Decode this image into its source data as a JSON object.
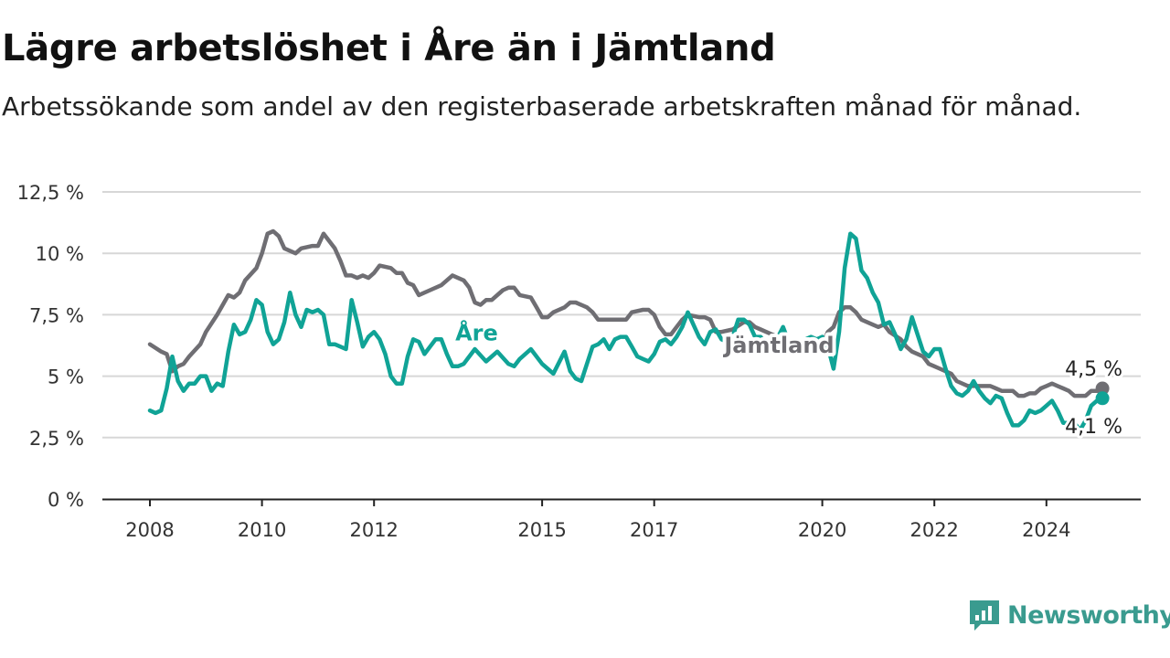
{
  "title": "Lägre arbetslöshet i Åre än i Jämtland",
  "subtitle": "Arbetssökande som andel av den registerbaserade arbetskraften månad för månad.",
  "brand": {
    "name": "Newsworthy",
    "color": "#3a9b8f"
  },
  "chart_data": {
    "type": "line",
    "ylim": [
      0,
      12.5
    ],
    "xlim": [
      2008,
      2025.1
    ],
    "yticks": [
      {
        "value": 0,
        "label": "0 %"
      },
      {
        "value": 2.5,
        "label": "2,5 %"
      },
      {
        "value": 5,
        "label": "5 %"
      },
      {
        "value": 7.5,
        "label": "7,5 %"
      },
      {
        "value": 10,
        "label": "10 %"
      },
      {
        "value": 12.5,
        "label": "12,5 %"
      }
    ],
    "xticks": [
      {
        "value": 2008,
        "label": "2008"
      },
      {
        "value": 2010,
        "label": "2010"
      },
      {
        "value": 2012,
        "label": "2012"
      },
      {
        "value": 2015,
        "label": "2015"
      },
      {
        "value": 2017,
        "label": "2017"
      },
      {
        "value": 2020,
        "label": "2020"
      },
      {
        "value": 2022,
        "label": "2022"
      },
      {
        "value": 2024,
        "label": "2024"
      }
    ],
    "grid": true,
    "series": [
      {
        "name": "Jämtland",
        "color": "#6f6e73",
        "end_label": "4,5 %",
        "points": [
          [
            2008.0,
            6.3
          ],
          [
            2008.2,
            6.0
          ],
          [
            2008.3,
            5.9
          ],
          [
            2008.4,
            5.2
          ],
          [
            2008.5,
            5.4
          ],
          [
            2008.6,
            5.5
          ],
          [
            2008.7,
            5.8
          ],
          [
            2008.9,
            6.3
          ],
          [
            2009.0,
            6.8
          ],
          [
            2009.2,
            7.5
          ],
          [
            2009.3,
            7.9
          ],
          [
            2009.4,
            8.3
          ],
          [
            2009.5,
            8.2
          ],
          [
            2009.6,
            8.4
          ],
          [
            2009.7,
            8.9
          ],
          [
            2009.9,
            9.4
          ],
          [
            2010.0,
            10.0
          ],
          [
            2010.1,
            10.8
          ],
          [
            2010.2,
            10.9
          ],
          [
            2010.3,
            10.7
          ],
          [
            2010.4,
            10.2
          ],
          [
            2010.6,
            10.0
          ],
          [
            2010.7,
            10.2
          ],
          [
            2010.9,
            10.3
          ],
          [
            2011.0,
            10.3
          ],
          [
            2011.1,
            10.8
          ],
          [
            2011.3,
            10.2
          ],
          [
            2011.4,
            9.7
          ],
          [
            2011.5,
            9.1
          ],
          [
            2011.6,
            9.1
          ],
          [
            2011.7,
            9.0
          ],
          [
            2011.8,
            9.1
          ],
          [
            2011.9,
            9.0
          ],
          [
            2012.0,
            9.2
          ],
          [
            2012.1,
            9.5
          ],
          [
            2012.3,
            9.4
          ],
          [
            2012.4,
            9.2
          ],
          [
            2012.5,
            9.2
          ],
          [
            2012.6,
            8.8
          ],
          [
            2012.7,
            8.7
          ],
          [
            2012.8,
            8.3
          ],
          [
            2013.0,
            8.5
          ],
          [
            2013.2,
            8.7
          ],
          [
            2013.4,
            9.1
          ],
          [
            2013.6,
            8.9
          ],
          [
            2013.7,
            8.6
          ],
          [
            2013.8,
            8.0
          ],
          [
            2013.9,
            7.9
          ],
          [
            2014.0,
            8.1
          ],
          [
            2014.1,
            8.1
          ],
          [
            2014.3,
            8.5
          ],
          [
            2014.4,
            8.6
          ],
          [
            2014.5,
            8.6
          ],
          [
            2014.6,
            8.3
          ],
          [
            2014.8,
            8.2
          ],
          [
            2014.9,
            7.8
          ],
          [
            2015.0,
            7.4
          ],
          [
            2015.1,
            7.4
          ],
          [
            2015.2,
            7.6
          ],
          [
            2015.4,
            7.8
          ],
          [
            2015.5,
            8.0
          ],
          [
            2015.6,
            8.0
          ],
          [
            2015.8,
            7.8
          ],
          [
            2015.9,
            7.6
          ],
          [
            2016.0,
            7.3
          ],
          [
            2016.1,
            7.3
          ],
          [
            2016.3,
            7.3
          ],
          [
            2016.5,
            7.3
          ],
          [
            2016.6,
            7.6
          ],
          [
            2016.8,
            7.7
          ],
          [
            2016.9,
            7.7
          ],
          [
            2017.0,
            7.5
          ],
          [
            2017.1,
            7.0
          ],
          [
            2017.2,
            6.7
          ],
          [
            2017.3,
            6.7
          ],
          [
            2017.4,
            7.0
          ],
          [
            2017.5,
            7.3
          ],
          [
            2017.6,
            7.5
          ],
          [
            2017.8,
            7.4
          ],
          [
            2017.9,
            7.4
          ],
          [
            2018.0,
            7.3
          ],
          [
            2018.1,
            6.8
          ],
          [
            2018.2,
            6.8
          ],
          [
            2018.4,
            6.9
          ],
          [
            2018.6,
            7.2
          ],
          [
            2018.7,
            7.2
          ],
          [
            2018.8,
            7.0
          ],
          [
            2018.9,
            6.9
          ],
          [
            2019.0,
            6.8
          ],
          [
            2019.2,
            6.6
          ],
          [
            2019.5,
            6.2
          ],
          [
            2019.8,
            6.3
          ],
          [
            2020.0,
            6.3
          ],
          [
            2020.1,
            6.8
          ],
          [
            2020.2,
            7.0
          ],
          [
            2020.3,
            7.6
          ],
          [
            2020.4,
            7.8
          ],
          [
            2020.5,
            7.8
          ],
          [
            2020.6,
            7.6
          ],
          [
            2020.7,
            7.3
          ],
          [
            2020.9,
            7.1
          ],
          [
            2021.0,
            7.0
          ],
          [
            2021.1,
            7.1
          ],
          [
            2021.2,
            6.8
          ],
          [
            2021.4,
            6.5
          ],
          [
            2021.5,
            6.2
          ],
          [
            2021.6,
            6.0
          ],
          [
            2021.8,
            5.8
          ],
          [
            2021.9,
            5.5
          ],
          [
            2022.0,
            5.4
          ],
          [
            2022.1,
            5.3
          ],
          [
            2022.3,
            5.1
          ],
          [
            2022.4,
            4.8
          ],
          [
            2022.6,
            4.6
          ],
          [
            2022.7,
            4.6
          ],
          [
            2022.9,
            4.6
          ],
          [
            2023.0,
            4.6
          ],
          [
            2023.1,
            4.5
          ],
          [
            2023.2,
            4.4
          ],
          [
            2023.3,
            4.4
          ],
          [
            2023.4,
            4.4
          ],
          [
            2023.5,
            4.2
          ],
          [
            2023.6,
            4.2
          ],
          [
            2023.7,
            4.3
          ],
          [
            2023.8,
            4.3
          ],
          [
            2023.9,
            4.5
          ],
          [
            2024.0,
            4.6
          ],
          [
            2024.1,
            4.7
          ],
          [
            2024.2,
            4.6
          ],
          [
            2024.3,
            4.5
          ],
          [
            2024.4,
            4.4
          ],
          [
            2024.5,
            4.2
          ],
          [
            2024.6,
            4.2
          ],
          [
            2024.7,
            4.2
          ],
          [
            2024.8,
            4.4
          ],
          [
            2024.9,
            4.4
          ],
          [
            2025.0,
            4.5
          ]
        ]
      },
      {
        "name": "Åre",
        "color": "#10a396",
        "end_label": "4,1 %",
        "points": [
          [
            2008.0,
            3.6
          ],
          [
            2008.1,
            3.5
          ],
          [
            2008.2,
            3.6
          ],
          [
            2008.3,
            4.5
          ],
          [
            2008.4,
            5.8
          ],
          [
            2008.5,
            4.8
          ],
          [
            2008.6,
            4.4
          ],
          [
            2008.7,
            4.7
          ],
          [
            2008.8,
            4.7
          ],
          [
            2008.9,
            5.0
          ],
          [
            2009.0,
            5.0
          ],
          [
            2009.1,
            4.4
          ],
          [
            2009.2,
            4.7
          ],
          [
            2009.3,
            4.6
          ],
          [
            2009.4,
            6.0
          ],
          [
            2009.5,
            7.1
          ],
          [
            2009.6,
            6.7
          ],
          [
            2009.7,
            6.8
          ],
          [
            2009.8,
            7.3
          ],
          [
            2009.9,
            8.1
          ],
          [
            2010.0,
            7.9
          ],
          [
            2010.1,
            6.8
          ],
          [
            2010.2,
            6.3
          ],
          [
            2010.3,
            6.5
          ],
          [
            2010.4,
            7.2
          ],
          [
            2010.5,
            8.4
          ],
          [
            2010.6,
            7.5
          ],
          [
            2010.7,
            7.0
          ],
          [
            2010.8,
            7.7
          ],
          [
            2010.9,
            7.6
          ],
          [
            2011.0,
            7.7
          ],
          [
            2011.1,
            7.5
          ],
          [
            2011.2,
            6.3
          ],
          [
            2011.3,
            6.3
          ],
          [
            2011.4,
            6.2
          ],
          [
            2011.5,
            6.1
          ],
          [
            2011.6,
            8.1
          ],
          [
            2011.7,
            7.2
          ],
          [
            2011.8,
            6.2
          ],
          [
            2011.9,
            6.6
          ],
          [
            2012.0,
            6.8
          ],
          [
            2012.1,
            6.5
          ],
          [
            2012.2,
            5.9
          ],
          [
            2012.3,
            5.0
          ],
          [
            2012.4,
            4.7
          ],
          [
            2012.5,
            4.7
          ],
          [
            2012.6,
            5.8
          ],
          [
            2012.7,
            6.5
          ],
          [
            2012.8,
            6.4
          ],
          [
            2012.9,
            5.9
          ],
          [
            2013.0,
            6.2
          ],
          [
            2013.1,
            6.5
          ],
          [
            2013.2,
            6.5
          ],
          [
            2013.3,
            5.9
          ],
          [
            2013.4,
            5.4
          ],
          [
            2013.5,
            5.4
          ],
          [
            2013.6,
            5.5
          ],
          [
            2013.8,
            6.1
          ],
          [
            2014.0,
            5.6
          ],
          [
            2014.2,
            6.0
          ],
          [
            2014.4,
            5.5
          ],
          [
            2014.5,
            5.4
          ],
          [
            2014.6,
            5.7
          ],
          [
            2014.8,
            6.1
          ],
          [
            2015.0,
            5.5
          ],
          [
            2015.1,
            5.3
          ],
          [
            2015.2,
            5.1
          ],
          [
            2015.4,
            6.0
          ],
          [
            2015.5,
            5.2
          ],
          [
            2015.6,
            4.9
          ],
          [
            2015.7,
            4.8
          ],
          [
            2015.8,
            5.5
          ],
          [
            2015.9,
            6.2
          ],
          [
            2016.0,
            6.3
          ],
          [
            2016.1,
            6.5
          ],
          [
            2016.2,
            6.1
          ],
          [
            2016.3,
            6.5
          ],
          [
            2016.4,
            6.6
          ],
          [
            2016.5,
            6.6
          ],
          [
            2016.6,
            6.2
          ],
          [
            2016.7,
            5.8
          ],
          [
            2016.8,
            5.7
          ],
          [
            2016.9,
            5.6
          ],
          [
            2017.0,
            5.9
          ],
          [
            2017.1,
            6.4
          ],
          [
            2017.2,
            6.5
          ],
          [
            2017.3,
            6.3
          ],
          [
            2017.4,
            6.6
          ],
          [
            2017.5,
            7.0
          ],
          [
            2017.6,
            7.6
          ],
          [
            2017.7,
            7.1
          ],
          [
            2017.8,
            6.6
          ],
          [
            2017.9,
            6.3
          ],
          [
            2018.0,
            6.8
          ],
          [
            2018.1,
            6.9
          ],
          [
            2018.2,
            6.5
          ],
          [
            2018.3,
            6.4
          ],
          [
            2018.4,
            6.6
          ],
          [
            2018.5,
            7.3
          ],
          [
            2018.6,
            7.3
          ],
          [
            2018.7,
            7.1
          ],
          [
            2018.8,
            6.6
          ],
          [
            2018.9,
            6.6
          ],
          [
            2019.0,
            6.3
          ],
          [
            2019.1,
            6.1
          ],
          [
            2019.3,
            7.0
          ],
          [
            2019.4,
            6.4
          ],
          [
            2019.5,
            6.2
          ],
          [
            2019.7,
            6.5
          ],
          [
            2019.8,
            6.6
          ],
          [
            2019.9,
            6.5
          ],
          [
            2020.0,
            6.6
          ],
          [
            2020.1,
            6.2
          ],
          [
            2020.2,
            5.3
          ],
          [
            2020.3,
            6.8
          ],
          [
            2020.4,
            9.4
          ],
          [
            2020.5,
            10.8
          ],
          [
            2020.6,
            10.6
          ],
          [
            2020.7,
            9.3
          ],
          [
            2020.8,
            9.0
          ],
          [
            2020.9,
            8.4
          ],
          [
            2021.0,
            8.0
          ],
          [
            2021.1,
            7.1
          ],
          [
            2021.2,
            7.2
          ],
          [
            2021.3,
            6.7
          ],
          [
            2021.4,
            6.1
          ],
          [
            2021.5,
            6.5
          ],
          [
            2021.6,
            7.4
          ],
          [
            2021.7,
            6.7
          ],
          [
            2021.8,
            6.0
          ],
          [
            2021.9,
            5.8
          ],
          [
            2022.0,
            6.1
          ],
          [
            2022.1,
            6.1
          ],
          [
            2022.2,
            5.3
          ],
          [
            2022.3,
            4.6
          ],
          [
            2022.4,
            4.3
          ],
          [
            2022.5,
            4.2
          ],
          [
            2022.6,
            4.4
          ],
          [
            2022.7,
            4.8
          ],
          [
            2022.8,
            4.4
          ],
          [
            2022.9,
            4.1
          ],
          [
            2023.0,
            3.9
          ],
          [
            2023.1,
            4.2
          ],
          [
            2023.2,
            4.1
          ],
          [
            2023.3,
            3.5
          ],
          [
            2023.4,
            3.0
          ],
          [
            2023.5,
            3.0
          ],
          [
            2023.6,
            3.2
          ],
          [
            2023.7,
            3.6
          ],
          [
            2023.8,
            3.5
          ],
          [
            2023.9,
            3.6
          ],
          [
            2024.0,
            3.8
          ],
          [
            2024.1,
            4.0
          ],
          [
            2024.2,
            3.6
          ],
          [
            2024.3,
            3.1
          ],
          [
            2024.4,
            3.1
          ],
          [
            2024.5,
            3.1
          ],
          [
            2024.6,
            2.8
          ],
          [
            2024.7,
            3.2
          ],
          [
            2024.8,
            3.8
          ],
          [
            2024.9,
            4.0
          ],
          [
            2025.0,
            4.1
          ]
        ]
      }
    ]
  }
}
